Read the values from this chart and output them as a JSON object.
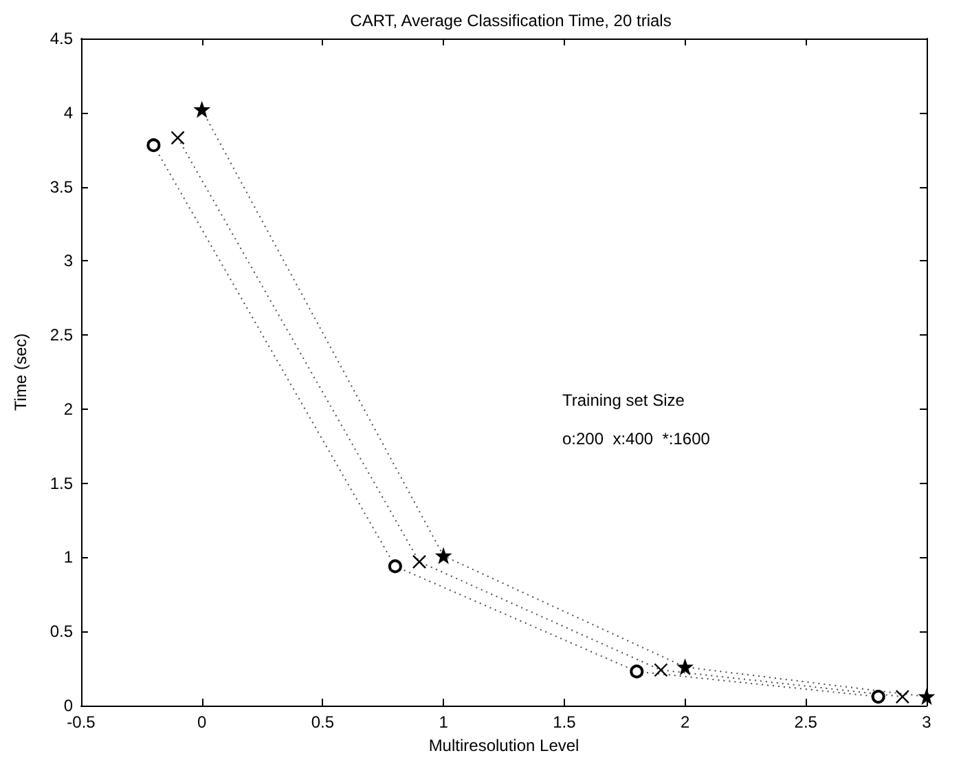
{
  "chart_data": {
    "type": "line",
    "title": "CART, Average Classification Time, 20 trials",
    "xlabel": "Multiresolution Level",
    "ylabel": "Time (sec)",
    "annotations": [
      "Training set Size",
      "o:200  x:400  *:1600"
    ],
    "series": [
      {
        "x": [
          -0.2,
          0.8,
          1.8,
          2.8
        ],
        "values": [
          3.78,
          0.94,
          0.23,
          0.06
        ],
        "color": "#000000",
        "marker": "circle"
      },
      {
        "x": [
          -0.1,
          0.9,
          1.9,
          2.9
        ],
        "values": [
          3.83,
          0.97,
          0.24,
          0.06
        ],
        "color": "#000000",
        "marker": "cross"
      },
      {
        "x": [
          0,
          1,
          2,
          3
        ],
        "values": [
          4.02,
          1.01,
          0.26,
          0.06
        ],
        "color": "#000000",
        "marker": "star"
      }
    ],
    "xlim": [
      -0.5,
      3
    ],
    "xticks": [
      -0.5,
      0,
      0.5,
      1,
      1.5,
      2,
      2.5,
      3
    ],
    "ylim": [
      0,
      4.5
    ],
    "yticks": [
      0,
      0.5,
      1,
      1.5,
      2,
      2.5,
      3,
      3.5,
      4,
      4.5
    ],
    "grid": false,
    "line_style": "dotted"
  }
}
